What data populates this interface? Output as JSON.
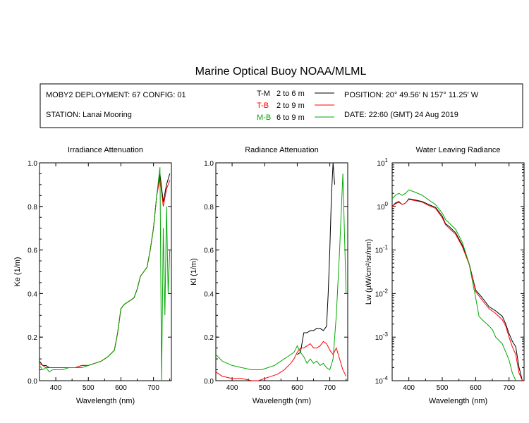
{
  "title": "Marine Optical Buoy NOAA/MLML",
  "info": {
    "deployment": "MOBY2 DEPLOYMENT: 67 CONFIG: 01",
    "station": "STATION: Lanai Mooring",
    "position": "POSITION: 20° 49.56' N   157° 11.25' W",
    "date": "DATE: 22:60 (GMT) 24 Aug 2019",
    "legend": [
      {
        "key": "T-M",
        "range": "2 to 6  m",
        "color": "#000000"
      },
      {
        "key": "T-B",
        "range": "2 to 9  m",
        "color": "#ff0000"
      },
      {
        "key": "M-B",
        "range": "6 to 9  m",
        "color": "#00aa00"
      }
    ]
  },
  "chart_data": [
    {
      "type": "line",
      "title": "Irradiance Attenuation",
      "xlabel": "Wavelength (nm)",
      "ylabel": "Ke  (1/m)",
      "xlim": [
        350,
        755
      ],
      "ylim": [
        0,
        1.0
      ],
      "xticks": [
        "400",
        "500",
        "600",
        "700"
      ],
      "yticks": [
        "0.0",
        "0.2",
        "0.4",
        "0.6",
        "0.8",
        "1.0"
      ],
      "yscale": "linear",
      "series": [
        {
          "name": "T-M",
          "color": "#000000",
          "x": [
            350,
            360,
            370,
            380,
            390,
            400,
            420,
            440,
            460,
            480,
            500,
            520,
            540,
            560,
            580,
            590,
            600,
            610,
            620,
            630,
            640,
            650,
            660,
            670,
            680,
            690,
            700,
            710,
            720,
            730,
            740,
            750
          ],
          "y": [
            0.09,
            0.07,
            0.07,
            0.06,
            0.06,
            0.06,
            0.06,
            0.06,
            0.06,
            0.07,
            0.07,
            0.08,
            0.09,
            0.11,
            0.14,
            0.22,
            0.33,
            0.35,
            0.36,
            0.37,
            0.38,
            0.42,
            0.48,
            0.5,
            0.52,
            0.6,
            0.7,
            0.85,
            0.95,
            0.82,
            0.9,
            0.95
          ]
        },
        {
          "name": "T-B",
          "color": "#ff0000",
          "x": [
            350,
            360,
            370,
            380,
            390,
            400,
            420,
            440,
            460,
            480,
            500,
            520,
            540,
            560,
            580,
            590,
            600,
            610,
            620,
            630,
            640,
            650,
            660,
            670,
            680,
            690,
            700,
            710,
            720,
            730,
            740,
            750
          ],
          "y": [
            0.08,
            0.07,
            0.06,
            0.06,
            0.06,
            0.06,
            0.06,
            0.06,
            0.06,
            0.07,
            0.07,
            0.08,
            0.09,
            0.11,
            0.14,
            0.22,
            0.33,
            0.35,
            0.36,
            0.37,
            0.38,
            0.42,
            0.48,
            0.5,
            0.52,
            0.6,
            0.7,
            0.85,
            0.93,
            0.8,
            0.88,
            0.92
          ]
        },
        {
          "name": "M-B",
          "color": "#00aa00",
          "x": [
            350,
            360,
            370,
            380,
            390,
            400,
            420,
            440,
            460,
            480,
            500,
            520,
            540,
            560,
            580,
            590,
            600,
            610,
            620,
            630,
            640,
            650,
            660,
            670,
            680,
            690,
            700,
            710,
            720,
            725,
            730,
            735,
            740,
            745,
            750
          ],
          "y": [
            0.07,
            0.05,
            0.06,
            0.04,
            0.05,
            0.05,
            0.05,
            0.06,
            0.06,
            0.06,
            0.07,
            0.08,
            0.09,
            0.11,
            0.14,
            0.22,
            0.33,
            0.35,
            0.36,
            0.37,
            0.38,
            0.42,
            0.48,
            0.5,
            0.52,
            0.6,
            0.7,
            0.85,
            0.98,
            0.0,
            0.7,
            0.3,
            0.8,
            0.4,
            0.6
          ]
        }
      ]
    },
    {
      "type": "line",
      "title": "Radiance Attenuation",
      "xlabel": "Wavelength (nm)",
      "ylabel": "Kl  (1/m)",
      "xlim": [
        350,
        755
      ],
      "ylim": [
        0,
        1.0
      ],
      "xticks": [
        "400",
        "500",
        "600",
        "700"
      ],
      "yticks": [
        "0.0",
        "0.2",
        "0.4",
        "0.6",
        "0.8",
        "1.0"
      ],
      "yscale": "linear",
      "series": [
        {
          "name": "T-M",
          "color": "#000000",
          "x": [
            600,
            610,
            620,
            630,
            640,
            650,
            660,
            670,
            680,
            690,
            695,
            700,
            705,
            710,
            715
          ],
          "y": [
            0.12,
            0.13,
            0.22,
            0.22,
            0.23,
            0.23,
            0.24,
            0.24,
            0.23,
            0.25,
            0.4,
            0.6,
            0.85,
            1.0,
            0.9
          ]
        },
        {
          "name": "T-B",
          "color": "#ff0000",
          "x": [
            350,
            370,
            400,
            430,
            460,
            480,
            500,
            520,
            540,
            560,
            580,
            590,
            600,
            610,
            620,
            630,
            640,
            650,
            660,
            670,
            680,
            690,
            700,
            710,
            720,
            730,
            740,
            750
          ],
          "y": [
            0.04,
            0.02,
            0.01,
            0.01,
            0.0,
            0.0,
            0.01,
            0.02,
            0.03,
            0.05,
            0.08,
            0.1,
            0.13,
            0.15,
            0.15,
            0.16,
            0.17,
            0.15,
            0.15,
            0.16,
            0.18,
            0.17,
            0.14,
            0.12,
            0.15,
            0.1,
            0.05,
            0.02
          ]
        },
        {
          "name": "M-B",
          "color": "#00aa00",
          "x": [
            350,
            370,
            400,
            430,
            460,
            490,
            510,
            530,
            550,
            570,
            590,
            600,
            610,
            620,
            630,
            640,
            650,
            660,
            670,
            680,
            690,
            700,
            710,
            720,
            730,
            740,
            750
          ],
          "y": [
            0.12,
            0.09,
            0.07,
            0.06,
            0.05,
            0.05,
            0.06,
            0.07,
            0.09,
            0.11,
            0.13,
            0.16,
            0.13,
            0.11,
            0.08,
            0.1,
            0.08,
            0.09,
            0.07,
            0.08,
            0.06,
            0.05,
            0.1,
            0.3,
            0.6,
            0.95,
            0.4
          ]
        }
      ]
    },
    {
      "type": "line",
      "title": "Water Leaving Radiance",
      "xlabel": "Wavelength (nm)",
      "ylabel": "Lw  (µW/cm²/sr/nm)",
      "xlim": [
        350,
        745
      ],
      "ylim": [
        0.0001,
        10
      ],
      "xticks": [
        "400",
        "500",
        "600",
        "700"
      ],
      "yticks": [
        "10^-4",
        "10^-3",
        "10^-2",
        "10^-1",
        "10^0",
        "10^1"
      ],
      "yscale": "log",
      "series": [
        {
          "name": "T-M",
          "color": "#000000",
          "x": [
            350,
            360,
            370,
            380,
            390,
            400,
            420,
            440,
            460,
            480,
            500,
            510,
            520,
            540,
            560,
            580,
            590,
            600,
            620,
            640,
            660,
            680,
            690,
            700,
            710,
            720,
            730,
            740
          ],
          "y": [
            1.0,
            1.2,
            1.3,
            1.1,
            1.2,
            1.5,
            1.4,
            1.3,
            1.1,
            0.95,
            0.6,
            0.4,
            0.35,
            0.25,
            0.13,
            0.05,
            0.025,
            0.012,
            0.008,
            0.005,
            0.004,
            0.003,
            0.002,
            0.0012,
            0.0008,
            0.0006,
            0.0002,
            0.0001
          ]
        },
        {
          "name": "T-B",
          "color": "#ff0000",
          "x": [
            350,
            360,
            370,
            380,
            390,
            400,
            420,
            440,
            460,
            480,
            500,
            510,
            520,
            540,
            560,
            580,
            590,
            600,
            620,
            640,
            660,
            680,
            690,
            700,
            710,
            720,
            730,
            740
          ],
          "y": [
            1.0,
            1.15,
            1.25,
            1.1,
            1.2,
            1.45,
            1.35,
            1.25,
            1.05,
            0.9,
            0.55,
            0.38,
            0.32,
            0.23,
            0.12,
            0.048,
            0.024,
            0.011,
            0.007,
            0.0045,
            0.0035,
            0.0025,
            0.0018,
            0.001,
            0.0006,
            0.0004,
            0.00015,
            0.0001
          ]
        },
        {
          "name": "M-B",
          "color": "#00aa00",
          "x": [
            350,
            360,
            370,
            380,
            390,
            400,
            420,
            440,
            460,
            480,
            500,
            510,
            520,
            540,
            560,
            580,
            590,
            600,
            610,
            620,
            640,
            650,
            660,
            680,
            700,
            710,
            720
          ],
          "y": [
            1.5,
            1.8,
            2.0,
            1.8,
            2.0,
            2.4,
            2.1,
            1.8,
            1.4,
            1.1,
            0.7,
            0.5,
            0.42,
            0.3,
            0.15,
            0.05,
            0.02,
            0.008,
            0.003,
            0.0025,
            0.0018,
            0.0015,
            0.001,
            0.0007,
            0.0003,
            0.00015,
            0.0001
          ]
        }
      ]
    }
  ]
}
